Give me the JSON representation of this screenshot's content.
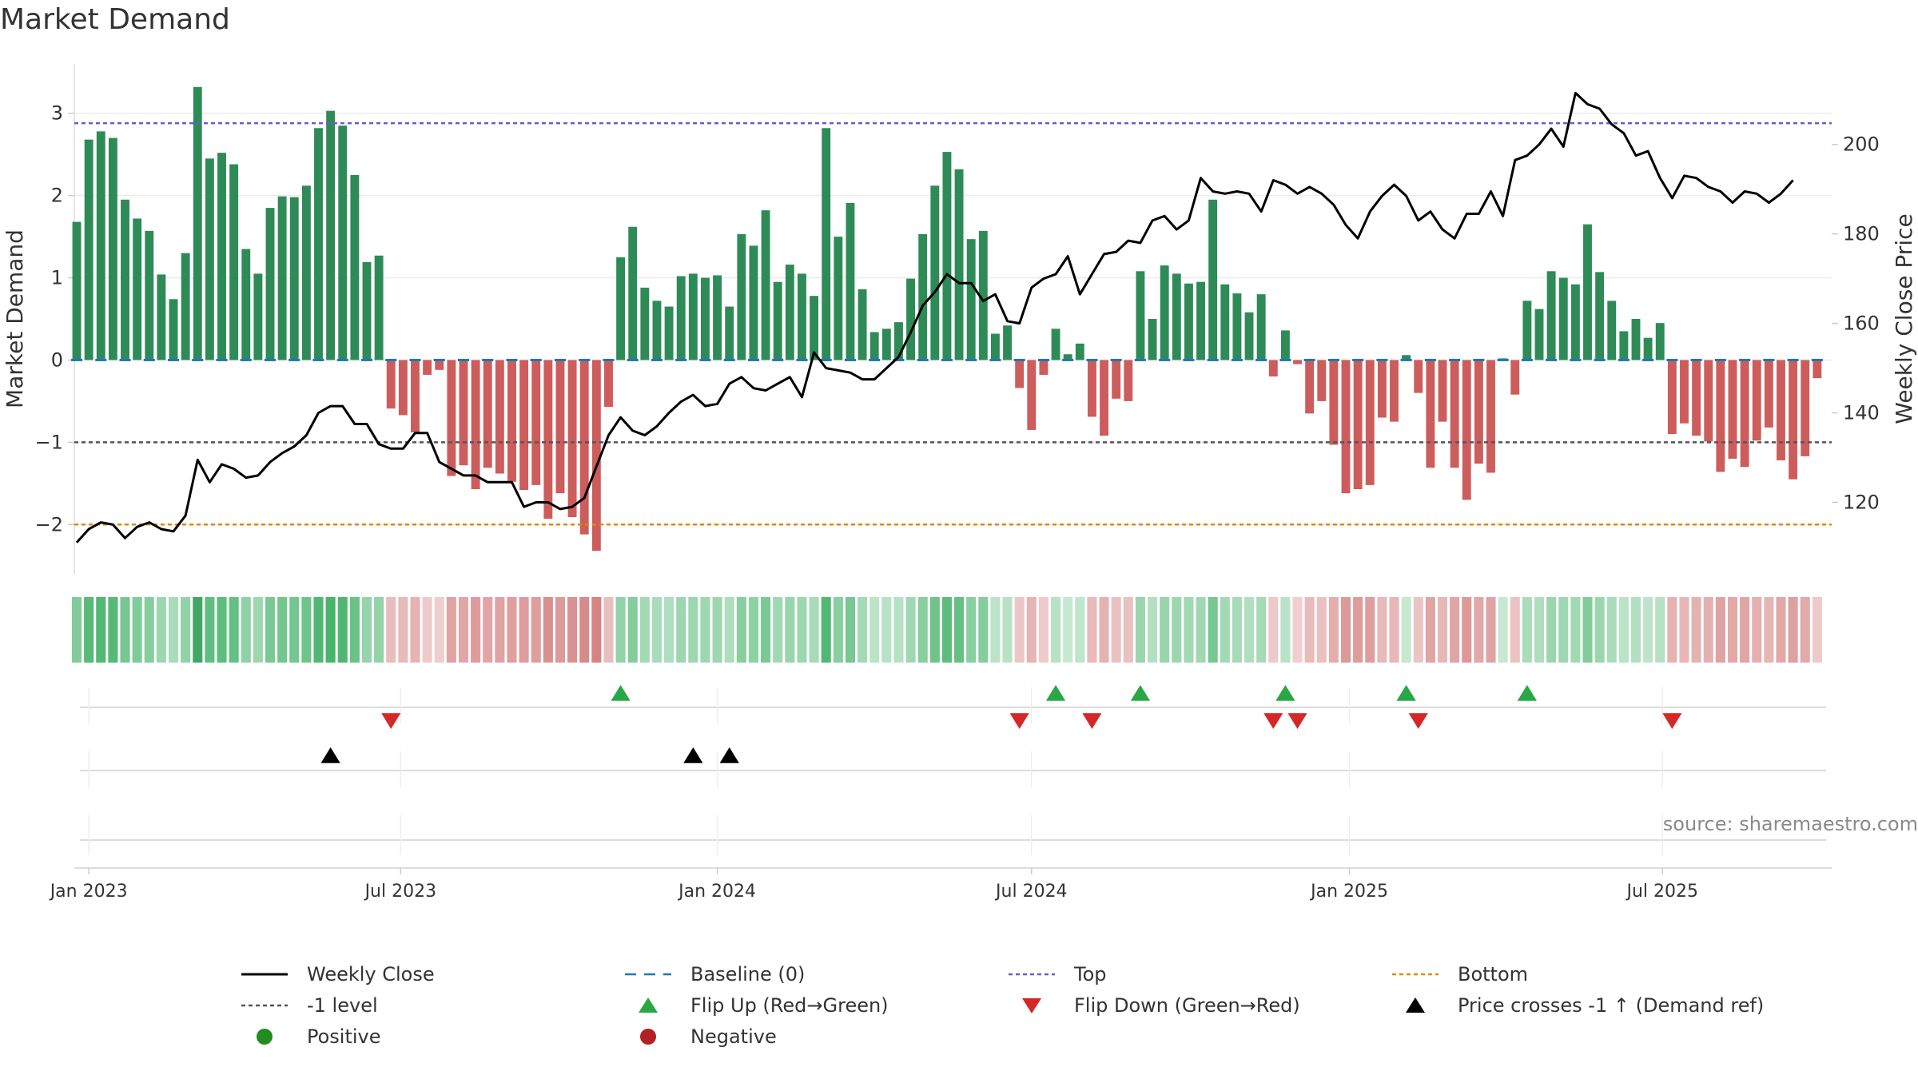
{
  "title": "Market Demand",
  "source": "source: sharemaestro.com",
  "colors": {
    "positive_bar": "#2e8b57",
    "negative_bar": "#cd5c5c",
    "price_line": "#000000",
    "baseline": "#1f77b4",
    "top_line": "#6a5acd",
    "minus1_line": "#555555",
    "bottom_line": "#e08a00",
    "flip_up": "#27a844",
    "flip_down": "#d62728",
    "cross_marker": "#000000"
  },
  "legend": [
    {
      "id": "weekly-close",
      "label": "Weekly Close",
      "symbol": "solid-line",
      "color": "#000000"
    },
    {
      "id": "baseline",
      "label": "Baseline (0)",
      "symbol": "dashed-line",
      "color": "#1f77b4"
    },
    {
      "id": "top",
      "label": "Top",
      "symbol": "dotted-line",
      "color": "#6a5acd"
    },
    {
      "id": "bottom",
      "label": "Bottom",
      "symbol": "dotted-line",
      "color": "#e08a00"
    },
    {
      "id": "minus1",
      "label": "-1 level",
      "symbol": "dotted-line",
      "color": "#555555"
    },
    {
      "id": "flip-up",
      "label": "Flip Up (Red→Green)",
      "symbol": "triangle-up",
      "color": "#27a844"
    },
    {
      "id": "flip-down",
      "label": "Flip Down (Green→Red)",
      "symbol": "triangle-down",
      "color": "#d62728"
    },
    {
      "id": "price-cross",
      "label": "Price crosses -1 ↑ (Demand ref)",
      "symbol": "triangle-up",
      "color": "#000000"
    },
    {
      "id": "positive",
      "label": "Positive",
      "symbol": "circle",
      "color": "#228b22"
    },
    {
      "id": "negative",
      "label": "Negative",
      "symbol": "circle",
      "color": "#b22222"
    }
  ],
  "chart_data": {
    "type": "bar",
    "title": "Market Demand",
    "ylabel": "Market Demand",
    "y2label": "Weekly Close Price",
    "ylim": [
      -2.6,
      3.6
    ],
    "y2lim": [
      104,
      218
    ],
    "yticks": [
      -2,
      -1,
      0,
      1,
      2,
      3
    ],
    "yticklabels": [
      "−2",
      "−1",
      "0",
      "1",
      "2",
      "3"
    ],
    "y2ticks": [
      120,
      140,
      160,
      180,
      200
    ],
    "x_start": "2022-12-26",
    "x_range_weeks": [
      -0.2,
      145.2
    ],
    "xticks": [
      {
        "week": 1.0,
        "label": "Jan 2023"
      },
      {
        "week": 26.8,
        "label": "Jul 2023"
      },
      {
        "week": 53.0,
        "label": "Jan 2024"
      },
      {
        "week": 79.0,
        "label": "Jul 2024"
      },
      {
        "week": 105.3,
        "label": "Jan 2025"
      },
      {
        "week": 131.2,
        "label": "Jul 2025"
      }
    ],
    "reference_lines": {
      "top": 2.88,
      "minus1": -1.0,
      "bottom": -2.0,
      "baseline": 0
    },
    "demand": [
      1.68,
      2.68,
      2.78,
      2.7,
      1.95,
      1.72,
      1.57,
      1.04,
      0.74,
      1.3,
      3.32,
      2.45,
      2.52,
      2.38,
      1.35,
      1.05,
      1.85,
      1.99,
      1.98,
      2.12,
      2.82,
      3.03,
      2.85,
      2.25,
      1.19,
      1.27,
      -0.59,
      -0.67,
      -0.88,
      -0.18,
      -0.12,
      -1.41,
      -1.28,
      -1.57,
      -1.31,
      -1.38,
      -1.48,
      -1.58,
      -1.52,
      -1.93,
      -1.62,
      -1.91,
      -2.12,
      -2.32,
      -0.57,
      1.25,
      1.62,
      0.88,
      0.72,
      0.65,
      1.02,
      1.05,
      1.0,
      1.03,
      0.65,
      1.53,
      1.39,
      1.82,
      0.95,
      1.16,
      1.05,
      0.78,
      2.82,
      1.5,
      1.91,
      0.86,
      0.34,
      0.38,
      0.46,
      0.99,
      1.53,
      2.12,
      2.53,
      2.32,
      1.47,
      1.57,
      0.32,
      0.42,
      -0.34,
      -0.85,
      -0.18,
      0.38,
      0.07,
      0.2,
      -0.69,
      -0.92,
      -0.47,
      -0.5,
      1.08,
      0.5,
      1.15,
      1.05,
      0.93,
      0.95,
      1.95,
      0.92,
      0.81,
      0.58,
      0.8,
      -0.2,
      0.36,
      -0.05,
      -0.65,
      -0.5,
      -1.03,
      -1.62,
      -1.57,
      -1.52,
      -0.7,
      -0.75,
      0.06,
      -0.4,
      -1.31,
      -0.75,
      -1.31,
      -1.7,
      -1.26,
      -1.37,
      0.02,
      -0.42,
      0.72,
      0.62,
      1.08,
      1.0,
      0.92,
      1.65,
      1.07,
      0.72,
      0.35,
      0.5,
      0.27,
      0.45,
      -0.9,
      -0.77,
      -0.92,
      -0.99,
      -1.36,
      -1.2,
      -1.3,
      -0.98,
      -0.82,
      -1.22,
      -1.45,
      -1.17,
      -0.22
    ],
    "price": [
      111.0,
      114.0,
      115.5,
      115.0,
      112.0,
      114.5,
      115.5,
      114.0,
      113.5,
      117.0,
      129.5,
      124.5,
      128.5,
      127.5,
      125.5,
      126.0,
      129.0,
      131.0,
      132.5,
      135.0,
      140.0,
      141.5,
      141.5,
      137.5,
      137.5,
      133.0,
      132.0,
      132.0,
      135.5,
      135.5,
      129.0,
      127.5,
      126.0,
      126.0,
      124.5,
      124.5,
      124.5,
      119.0,
      120.0,
      120.0,
      118.5,
      119.0,
      121.0,
      128.0,
      135.0,
      139.0,
      136.0,
      135.0,
      137.0,
      140.0,
      142.5,
      144.0,
      141.5,
      142.0,
      146.5,
      148.0,
      145.5,
      145.0,
      146.5,
      148.0,
      143.5,
      153.5,
      150.0,
      149.5,
      149.0,
      147.5,
      147.5,
      150.0,
      152.5,
      158.0,
      164.0,
      167.0,
      171.0,
      169.0,
      169.0,
      165.0,
      166.5,
      160.5,
      160.0,
      168.0,
      170.0,
      171.0,
      175.0,
      166.5,
      171.0,
      175.5,
      176.0,
      178.5,
      178.0,
      183.0,
      184.0,
      181.0,
      183.0,
      192.5,
      189.5,
      189.0,
      189.5,
      189.0,
      185.0,
      192.0,
      191.0,
      189.0,
      190.5,
      189.0,
      186.5,
      182.0,
      179.0,
      185.0,
      188.5,
      191.0,
      188.5,
      183.0,
      185.0,
      181.0,
      179.0,
      184.5,
      184.5,
      189.5,
      184.0,
      196.5,
      197.5,
      200.0,
      203.5,
      199.5,
      211.5,
      209.0,
      208.0,
      204.5,
      202.5,
      197.5,
      198.5,
      192.5,
      188.0,
      193.0,
      192.5,
      190.5,
      189.5,
      187.0,
      189.5,
      189.0,
      187.0,
      189.0,
      192.0
    ],
    "flip_up_weeks": [
      45,
      81,
      88,
      100,
      110,
      120
    ],
    "flip_down_weeks": [
      26,
      78,
      84,
      99,
      101,
      111,
      132
    ],
    "price_cross_weeks": [
      21,
      51,
      54
    ]
  }
}
